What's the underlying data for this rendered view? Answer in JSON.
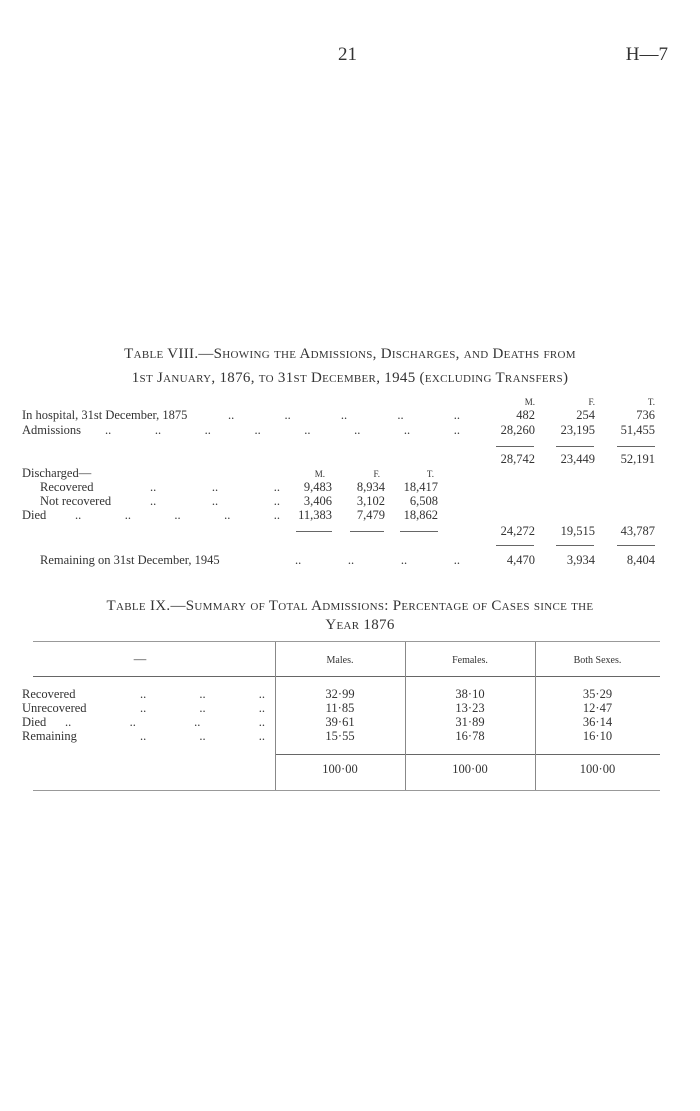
{
  "header": {
    "page_number": "21",
    "reference": "H—7"
  },
  "table8": {
    "title_line1": "Table VIII.—Showing the Admissions, Discharges, and Deaths from",
    "title_line2": "1st January, 1876, to 31st December, 1945 (excluding Transfers)",
    "col_headers": [
      "M.",
      "F.",
      "T."
    ],
    "rows": [
      {
        "label": "In hospital, 31st December, 1875",
        "m": "482",
        "f": "254",
        "t": "736"
      },
      {
        "label": "Admissions",
        "m": "28,260",
        "f": "23,195",
        "t": "51,455"
      }
    ],
    "subtotal": {
      "m": "28,742",
      "f": "23,449",
      "t": "52,191"
    },
    "discharged_label": "Discharged—",
    "sub_rows": [
      {
        "label": "Recovered",
        "m": "9,483",
        "f": "8,934",
        "t": "18,417"
      },
      {
        "label": "Not recovered",
        "m": "3,406",
        "f": "3,102",
        "t": "6,508"
      },
      {
        "label": "Died",
        "m": "11,383",
        "f": "7,479",
        "t": "18,862"
      }
    ],
    "out_total": {
      "m": "24,272",
      "f": "19,515",
      "t": "43,787"
    },
    "remaining": {
      "label": "Remaining on 31st December, 1945",
      "m": "4,470",
      "f": "3,934",
      "t": "8,404"
    }
  },
  "table9": {
    "title_line1": "Table IX.—Summary of Total Admissions: Percentage of Cases since the",
    "title_line2": "Year 1876",
    "headers": [
      "—",
      "Males.",
      "Females.",
      "Both Sexes."
    ],
    "rows": [
      {
        "label": "Recovered",
        "males": "32·99",
        "females": "38·10",
        "both": "35·29"
      },
      {
        "label": "Unrecovered",
        "males": "11·85",
        "females": "13·23",
        "both": "12·47"
      },
      {
        "label": "Died",
        "males": "39·61",
        "females": "31·89",
        "both": "36·14"
      },
      {
        "label": "Remaining",
        "males": "15·55",
        "females": "16·78",
        "both": "16·10"
      }
    ],
    "totals": {
      "males": "100·00",
      "females": "100·00",
      "both": "100·00"
    }
  }
}
